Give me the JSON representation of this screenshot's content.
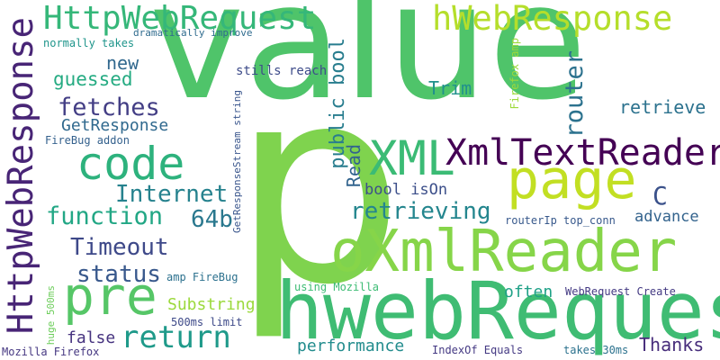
{
  "words": [
    {
      "text": "value",
      "color": "#4fc46a"
    },
    {
      "text": "p",
      "color": "#7fd34e"
    },
    {
      "text": "hwebRequest",
      "color": "#3fbc73"
    },
    {
      "text": "oXmlReader",
      "color": "#86d549"
    },
    {
      "text": "HttpWebResponse",
      "color": "#482576"
    },
    {
      "text": "HttpWebRequest",
      "color": "#35b779"
    },
    {
      "text": "hWebResponse",
      "color": "#b5de2b"
    },
    {
      "text": "page",
      "color": "#c2df23"
    },
    {
      "text": "code",
      "color": "#2db27d"
    },
    {
      "text": "XML",
      "color": "#3bbb75"
    },
    {
      "text": "XmlTextReader",
      "color": "#440154"
    },
    {
      "text": "pre",
      "color": "#56c667"
    },
    {
      "text": "retrieving",
      "color": "#24868e"
    },
    {
      "text": "return",
      "color": "#1f9a8a"
    },
    {
      "text": "Internet",
      "color": "#26828e"
    },
    {
      "text": "function",
      "color": "#22a785"
    },
    {
      "text": "Timeout",
      "color": "#3e4989"
    },
    {
      "text": "status",
      "color": "#38588c"
    },
    {
      "text": "64b",
      "color": "#2a788e"
    },
    {
      "text": "fetches",
      "color": "#433e85"
    },
    {
      "text": "router",
      "color": "#2c728e"
    },
    {
      "text": "public bool",
      "color": "#287d8e"
    },
    {
      "text": "Read",
      "color": "#32648e"
    },
    {
      "text": "C",
      "color": "#3b528b"
    },
    {
      "text": "new",
      "color": "#31688e"
    },
    {
      "text": "guessed",
      "color": "#25ab82"
    },
    {
      "text": "GetResponse",
      "color": "#30698e"
    },
    {
      "text": "Trim",
      "color": "#21918c"
    },
    {
      "text": "retrieve",
      "color": "#2c728e"
    },
    {
      "text": "bool isOn",
      "color": "#3c4f8a"
    },
    {
      "text": "advance",
      "color": "#33638d"
    },
    {
      "text": "Substring",
      "color": "#9bd93c"
    },
    {
      "text": "often",
      "color": "#1fa187"
    },
    {
      "text": "performance",
      "color": "#228c8d"
    },
    {
      "text": "false",
      "color": "#46337f"
    },
    {
      "text": "Thanks",
      "color": "#472d7b"
    },
    {
      "text": "stills reach",
      "color": "#3e4c8a"
    },
    {
      "text": "normally takes",
      "color": "#1f958b"
    },
    {
      "text": "dramatically improve",
      "color": "#2f6b8e"
    },
    {
      "text": "FireBug addon",
      "color": "#34618d"
    },
    {
      "text": "Firefox amp",
      "color": "#9dd93b"
    },
    {
      "text": "GetResponseStream string",
      "color": "#39558c"
    },
    {
      "text": "routerIp top_conn",
      "color": "#38598c"
    },
    {
      "text": "amp FireBug",
      "color": "#2c718e"
    },
    {
      "text": "using Mozilla",
      "color": "#3dbc74"
    },
    {
      "text": "huge 500ms",
      "color": "#6ccd5a"
    },
    {
      "text": "500ms limit",
      "color": "#3e4a89"
    },
    {
      "text": "WebRequest Create",
      "color": "#443a83"
    },
    {
      "text": "IndexOf Equals",
      "color": "#443983"
    },
    {
      "text": "takes 30ms",
      "color": "#2c728e"
    },
    {
      "text": "Mozilla Firefox",
      "color": "#453781"
    }
  ]
}
